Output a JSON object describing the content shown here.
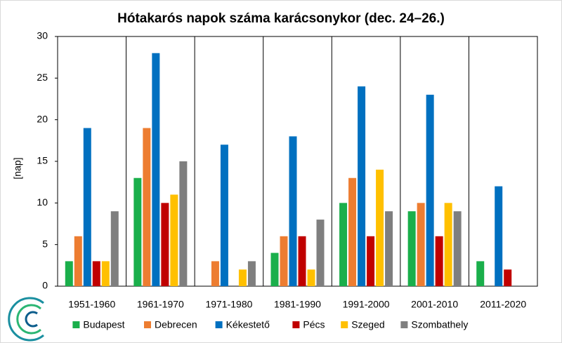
{
  "chart_data": {
    "type": "bar",
    "title": "Hótakarós napok száma karácsonykor  (dec. 24–26.)",
    "y_label": "[nap]",
    "categories": [
      "1951-1960",
      "1961-1970",
      "1971-1980",
      "1981-1990",
      "1991-2000",
      "2001-2010",
      "2011-2020"
    ],
    "series": [
      {
        "name": "Budapest",
        "color": "#1aaf4b",
        "values": [
          3,
          13,
          0,
          4,
          10,
          9,
          3
        ]
      },
      {
        "name": "Debrecen",
        "color": "#ed7d31",
        "values": [
          6,
          19,
          3,
          6,
          13,
          10,
          0
        ]
      },
      {
        "name": "Kékestető",
        "color": "#0070c0",
        "values": [
          19,
          28,
          17,
          18,
          24,
          23,
          12
        ]
      },
      {
        "name": "Pécs",
        "color": "#c00000",
        "values": [
          3,
          10,
          0,
          6,
          6,
          6,
          2
        ]
      },
      {
        "name": "Szeged",
        "color": "#ffc000",
        "values": [
          3,
          11,
          2,
          2,
          14,
          10,
          0
        ]
      },
      {
        "name": "Szombathely",
        "color": "#7f7f7f",
        "values": [
          9,
          15,
          3,
          8,
          9,
          9,
          0
        ]
      }
    ],
    "ylim": [
      0,
      30
    ],
    "yticks": [
      0,
      5,
      10,
      15,
      20,
      25,
      30
    ],
    "grid": false
  }
}
